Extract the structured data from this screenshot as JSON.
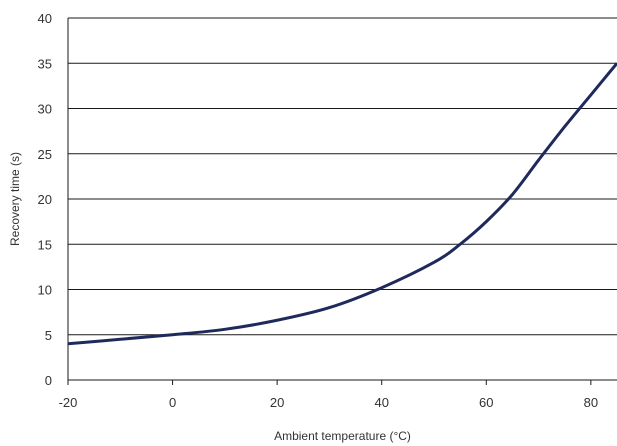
{
  "chart_data": {
    "type": "line",
    "title": "",
    "xlabel": "Ambient temperature (°C)",
    "ylabel": "Recovery time (s)",
    "xlim": [
      -20,
      85
    ],
    "ylim": [
      0,
      40
    ],
    "xticks": [
      -20,
      0,
      20,
      40,
      60,
      80
    ],
    "yticks": [
      0,
      5,
      10,
      15,
      20,
      25,
      30,
      35,
      40
    ],
    "x_tick_labels": [
      "-20",
      "0",
      "20",
      "40",
      "60",
      "80"
    ],
    "y_tick_labels": [
      "0",
      "5",
      "10",
      "15",
      "20",
      "25",
      "30",
      "35",
      "40"
    ],
    "grid": "horizontal",
    "series": [
      {
        "color": "#1f2a5c",
        "x": [
          -20,
          -10,
          0,
          10,
          20,
          30,
          40,
          50,
          55,
          60,
          65,
          70,
          75,
          80,
          85
        ],
        "y": [
          4.0,
          4.5,
          5.0,
          5.6,
          6.6,
          8.0,
          10.2,
          13.0,
          15.0,
          17.5,
          20.5,
          24.3,
          28.0,
          31.5,
          35.0
        ]
      }
    ]
  }
}
